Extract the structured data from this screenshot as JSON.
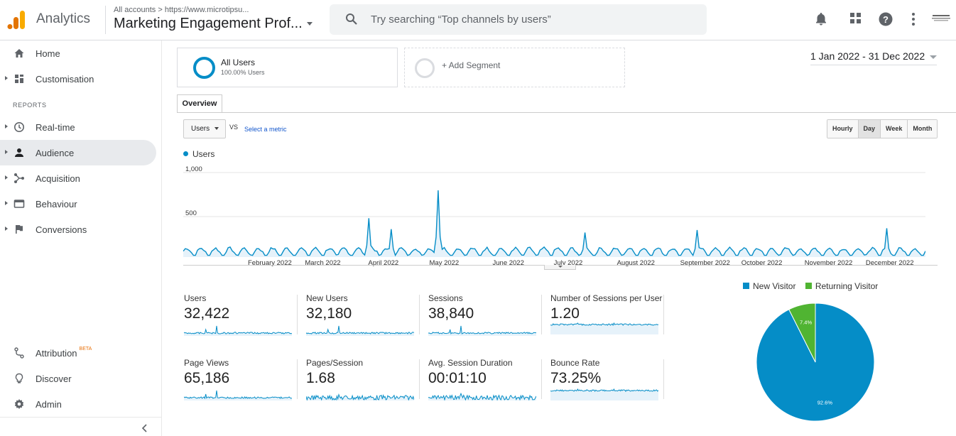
{
  "header": {
    "app_name": "Analytics",
    "breadcrumb": "All accounts > https://www.microtipsu...",
    "property_name": "Marketing Engagement Prof...",
    "search_placeholder": "Try searching “Top channels by users”",
    "icons": [
      "notifications-icon",
      "apps-grid-icon",
      "help-icon",
      "more-vert-icon",
      "account-avatar"
    ]
  },
  "sidebar": {
    "top_items": [
      {
        "label": "Home",
        "icon": "home-icon"
      },
      {
        "label": "Customisation",
        "icon": "dashboard-icon"
      }
    ],
    "section_label": "REPORTS",
    "report_items": [
      {
        "label": "Real-time",
        "icon": "clock-icon"
      },
      {
        "label": "Audience",
        "icon": "person-icon",
        "active": true
      },
      {
        "label": "Acquisition",
        "icon": "acquisition-icon"
      },
      {
        "label": "Behaviour",
        "icon": "behaviour-icon"
      },
      {
        "label": "Conversions",
        "icon": "flag-icon"
      }
    ],
    "bottom_items": [
      {
        "label": "Attribution",
        "badge": "BETA",
        "icon": "attribution-icon"
      },
      {
        "label": "Discover",
        "icon": "lightbulb-icon"
      },
      {
        "label": "Admin",
        "icon": "gear-icon"
      }
    ]
  },
  "segments": {
    "all_users_label": "All Users",
    "all_users_pct": "100.00% Users",
    "add_segment_label": "+ Add Segment"
  },
  "date_range": "1 Jan 2022 - 31 Dec 2022",
  "tabs": {
    "overview": "Overview"
  },
  "controls": {
    "metric": "Users",
    "vs": "VS",
    "select_metric": "Select a metric",
    "granularity": [
      "Hourly",
      "Day",
      "Week",
      "Month"
    ],
    "granularity_selected": "Day"
  },
  "chart_data": [
    {
      "type": "line",
      "series_name": "Users",
      "color": "#058dc7",
      "ylim": [
        0,
        1000
      ],
      "y_ticks": [
        "1,000",
        "500"
      ],
      "x_tick_labels": [
        "February 2022",
        "March 2022",
        "April 2022",
        "May 2022",
        "June 2022",
        "July 2022",
        "August 2022",
        "September 2022",
        "October 2022",
        "November 2022",
        "December 2022"
      ],
      "baseline_daily_users": 70,
      "peaks": [
        {
          "date": "2022-04-02",
          "value": 460
        },
        {
          "date": "2022-04-13",
          "value": 330
        },
        {
          "date": "2022-05-06",
          "value": 790
        },
        {
          "date": "2022-07-17",
          "value": 290
        },
        {
          "date": "2022-09-10",
          "value": 320
        },
        {
          "date": "2022-12-12",
          "value": 340
        }
      ]
    },
    {
      "type": "pie",
      "categories": [
        "New Visitor",
        "Returning Visitor"
      ],
      "values": [
        92.6,
        7.4
      ],
      "slice_labels": [
        "92.6%",
        "7.4%"
      ],
      "colors": [
        "#058dc7",
        "#50b432"
      ]
    }
  ],
  "kpis": [
    {
      "label": "Users",
      "value": "32,422"
    },
    {
      "label": "New Users",
      "value": "32,180"
    },
    {
      "label": "Sessions",
      "value": "38,840"
    },
    {
      "label": "Number of Sessions per User",
      "value": "1.20"
    },
    {
      "label": "Page Views",
      "value": "65,186"
    },
    {
      "label": "Pages/Session",
      "value": "1.68"
    },
    {
      "label": "Avg. Session Duration",
      "value": "00:01:10"
    },
    {
      "label": "Bounce Rate",
      "value": "73.25%"
    }
  ]
}
